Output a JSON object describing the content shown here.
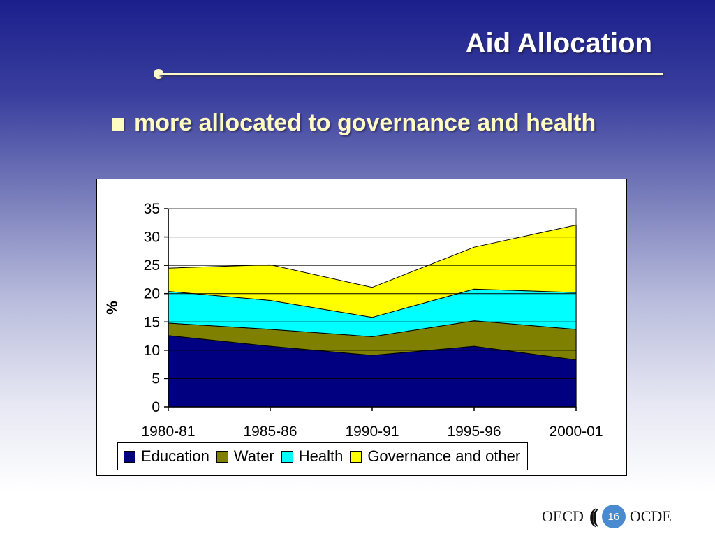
{
  "slide": {
    "title": "Aid Allocation",
    "bullet": "more allocated to governance and health",
    "page_number": "16",
    "logo_left": "OECD",
    "logo_right": "OCDE"
  },
  "colors": {
    "title": "#ffffff",
    "bullet": "#fffcc2",
    "education": "#000080",
    "water": "#808000",
    "health": "#00ffff",
    "governance": "#ffff00"
  },
  "chart_data": {
    "type": "area",
    "stacked": true,
    "categories": [
      "1980-81",
      "1985-86",
      "1990-91",
      "1995-96",
      "2000-01"
    ],
    "series": [
      {
        "name": "Education",
        "values": [
          12.6,
          10.7,
          9.1,
          10.7,
          8.3
        ],
        "color": "#000080"
      },
      {
        "name": "Water",
        "values": [
          2.2,
          3.0,
          3.3,
          4.5,
          5.4
        ],
        "color": "#808000"
      },
      {
        "name": "Health",
        "values": [
          5.6,
          5.1,
          3.4,
          5.6,
          6.5
        ],
        "color": "#00ffff"
      },
      {
        "name": "Governance and other",
        "values": [
          4.1,
          6.3,
          5.3,
          7.4,
          11.9
        ],
        "color": "#ffff00"
      }
    ],
    "ylabel": "%",
    "ylim": [
      0,
      35
    ],
    "yticks": [
      0,
      5,
      10,
      15,
      20,
      25,
      30,
      35
    ],
    "grid": true,
    "legend_position": "bottom"
  }
}
